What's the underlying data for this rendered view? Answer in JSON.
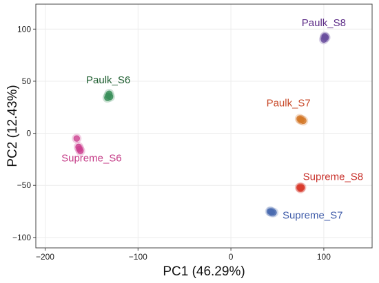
{
  "chart_data": {
    "type": "scatter",
    "xlabel": "PC1 (46.29%)",
    "ylabel": "PC2 (12.43%)",
    "xlim": [
      -210,
      152
    ],
    "ylim": [
      -110,
      124
    ],
    "xticks": [
      -200,
      -100,
      0,
      100
    ],
    "yticks": [
      -100,
      -50,
      0,
      50,
      100
    ],
    "grid": true,
    "series": [
      {
        "name": "Paulk_S8",
        "color": "#6a4f9e",
        "points": [
          [
            100,
            90
          ],
          [
            101,
            92
          ],
          [
            101,
            93
          ],
          [
            102,
            92
          ]
        ]
      },
      {
        "name": "Paulk_S6",
        "color": "#3a8f5a",
        "points": [
          [
            -133,
            34
          ],
          [
            -132,
            36
          ],
          [
            -131,
            38
          ],
          [
            -130,
            35
          ]
        ]
      },
      {
        "name": "Paulk_S7",
        "color": "#d4792a",
        "points": [
          [
            74,
            14
          ],
          [
            76,
            13
          ],
          [
            78,
            12
          ],
          [
            75,
            13
          ]
        ]
      },
      {
        "name": "Supreme_S6",
        "color": "#cc3f8f",
        "points": [
          [
            -166,
            -5
          ],
          [
            -164,
            -13
          ],
          [
            -162,
            -17
          ],
          [
            -163,
            -15
          ]
        ]
      },
      {
        "name": "Supreme_S8",
        "color": "#d93c2e",
        "points": [
          [
            74,
            -52
          ],
          [
            75,
            -53
          ],
          [
            76,
            -52
          ],
          [
            75,
            -52
          ]
        ]
      },
      {
        "name": "Supreme_S7",
        "color": "#4a6bb0",
        "points": [
          [
            42,
            -75
          ],
          [
            44,
            -76
          ],
          [
            46,
            -76
          ],
          [
            43,
            -75
          ]
        ]
      }
    ],
    "labels": [
      {
        "text": "Paulk_S8",
        "x": 100,
        "y": 103,
        "color": "#5b2a86"
      },
      {
        "text": "Paulk_S6",
        "x": -132,
        "y": 48,
        "color": "#1e5e30"
      },
      {
        "text": "Paulk_S7",
        "x": 62,
        "y": 26,
        "color": "#c84a2a"
      },
      {
        "text": "Supreme_S6",
        "x": -150,
        "y": -27,
        "color": "#c43a86"
      },
      {
        "text": "Supreme_S8",
        "x": 110,
        "y": -45,
        "color": "#c8302a"
      },
      {
        "text": "Supreme_S7",
        "x": 88,
        "y": -82,
        "color": "#3d5aa8"
      }
    ]
  }
}
